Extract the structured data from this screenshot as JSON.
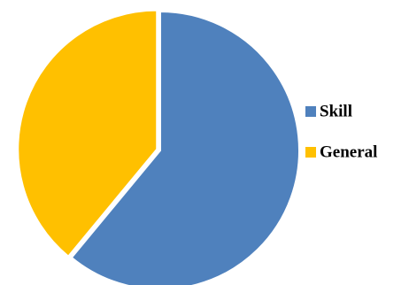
{
  "chart_data": {
    "type": "pie",
    "categories": [
      "Skill",
      "General"
    ],
    "values": [
      61,
      39
    ],
    "colors": [
      "#4f81bd",
      "#ffc000"
    ],
    "legend": "right"
  }
}
